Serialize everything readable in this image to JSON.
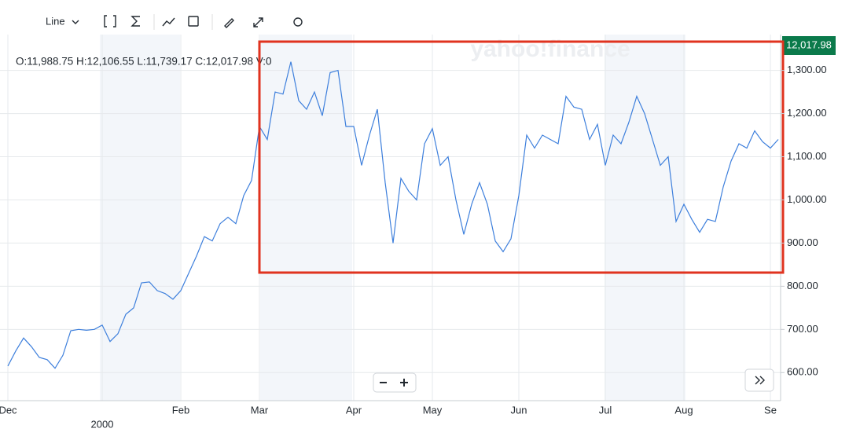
{
  "toolbar": {
    "chart_style": "Line"
  },
  "watermark": "yahoo!finance",
  "ohlc": "O:11,988.75  H:12,106.55  L:11,739.17  C:12,017.98  V:0",
  "price_tag": "12,017.98",
  "chart_data": {
    "type": "line",
    "color": "#3d7fdc",
    "grid": true,
    "categories": [
      "Dec",
      null,
      null,
      null,
      null,
      null,
      null,
      null,
      null,
      null,
      null,
      null,
      "2000",
      null,
      null,
      null,
      null,
      null,
      null,
      null,
      null,
      null,
      "Feb",
      null,
      null,
      null,
      null,
      null,
      null,
      null,
      null,
      null,
      "Mar",
      null,
      null,
      null,
      null,
      null,
      null,
      null,
      null,
      null,
      null,
      null,
      "Apr",
      null,
      null,
      null,
      null,
      null,
      null,
      null,
      null,
      null,
      "May",
      null,
      null,
      null,
      null,
      null,
      null,
      null,
      null,
      null,
      null,
      "Jun",
      null,
      null,
      null,
      null,
      null,
      null,
      null,
      null,
      null,
      null,
      "Jul",
      null,
      null,
      null,
      null,
      null,
      null,
      null,
      null,
      null,
      "Aug",
      null,
      null,
      null,
      null,
      null,
      null,
      null,
      null,
      null,
      null,
      "Se",
      null
    ],
    "values": [
      615,
      650,
      680,
      660,
      635,
      630,
      610,
      640,
      697,
      700,
      698,
      700,
      710,
      672,
      690,
      735,
      750,
      808,
      810,
      790,
      783,
      770,
      790,
      830,
      870,
      915,
      905,
      945,
      960,
      945,
      1010,
      1045,
      1170,
      1140,
      1250,
      1245,
      1320,
      1230,
      1210,
      1250,
      1195,
      1295,
      1300,
      1170,
      1170,
      1080,
      1150,
      1210,
      1040,
      900,
      1050,
      1020,
      1000,
      1130,
      1165,
      1080,
      1100,
      1000,
      920,
      990,
      1040,
      990,
      905,
      880,
      910,
      1010,
      1150,
      1120,
      1150,
      1140,
      1130,
      1240,
      1215,
      1210,
      1140,
      1175,
      1080,
      1150,
      1130,
      1180,
      1240,
      1200,
      1140,
      1080,
      1100,
      950,
      990,
      955,
      925,
      955,
      950,
      1030,
      1090,
      1130,
      1120,
      1160,
      1135,
      1120,
      1140
    ],
    "ylim": [
      535,
      1383
    ],
    "yticks": [
      {
        "value": 600,
        "label": "600.00"
      },
      {
        "value": 700,
        "label": "700.00"
      },
      {
        "value": 800,
        "label": "800.00"
      },
      {
        "value": 900,
        "label": "900.00"
      },
      {
        "value": 1000,
        "label": "1,000.00"
      },
      {
        "value": 1100,
        "label": "1,100.00"
      },
      {
        "value": 1200,
        "label": "1,200.00"
      },
      {
        "value": 1300,
        "label": "1,300.00"
      }
    ]
  }
}
